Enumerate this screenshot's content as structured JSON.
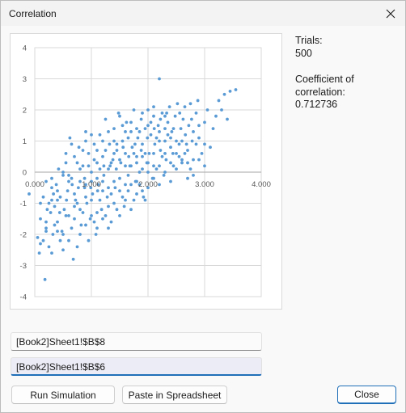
{
  "window": {
    "title": "Correlation"
  },
  "side": {
    "trials_label": "Trials:",
    "trials_value": "500",
    "coef_label_1": "Coefficient of",
    "coef_label_2": "correlation:",
    "coef_value": "0.712736"
  },
  "fields": {
    "range1": "[Book2]Sheet1!$B$8",
    "range2": "[Book2]Sheet1!$B$6"
  },
  "buttons": {
    "run": "Run Simulation",
    "paste": "Paste in Spreadsheet",
    "close": "Close"
  },
  "icons": {
    "close": "close-icon"
  },
  "colors": {
    "marker": "#5b9bd5",
    "focus": "#1f6fb8",
    "grid": "#d9d9d9"
  },
  "chart_data": {
    "type": "scatter",
    "title": "",
    "xlabel": "",
    "ylabel": "",
    "xlim": [
      0,
      4
    ],
    "ylim": [
      -4,
      4
    ],
    "x_ticks": [
      "0.000",
      "1.000",
      "2.000",
      "3.000",
      "4.000"
    ],
    "y_ticks": [
      "4",
      "3",
      "2",
      "1",
      "0",
      "-1",
      "-2",
      "-3",
      "-4"
    ],
    "grid": true,
    "legend": "none",
    "correlation": 0.712736,
    "n_points": 500,
    "series": [
      {
        "points": [
          [
            -0.1,
            -0.7
          ],
          [
            0.05,
            -2.1
          ],
          [
            0.08,
            -2.6
          ],
          [
            0.1,
            -1.5
          ],
          [
            0.15,
            -2.2
          ],
          [
            0.18,
            -3.45
          ],
          [
            0.2,
            -1.9
          ],
          [
            0.25,
            -2.4
          ],
          [
            0.28,
            -1.3
          ],
          [
            0.3,
            -0.9
          ],
          [
            0.32,
            -2.0
          ],
          [
            0.35,
            -1.1
          ],
          [
            0.38,
            -0.4
          ],
          [
            0.4,
            -1.6
          ],
          [
            0.42,
            0.1
          ],
          [
            0.45,
            -0.8
          ],
          [
            0.48,
            -1.9
          ],
          [
            0.5,
            0.0
          ],
          [
            0.52,
            -1.2
          ],
          [
            0.55,
            0.3
          ],
          [
            0.58,
            -0.6
          ],
          [
            0.6,
            -1.4
          ],
          [
            0.62,
            1.1
          ],
          [
            0.65,
            -0.2
          ],
          [
            0.68,
            -2.8
          ],
          [
            0.7,
            0.5
          ],
          [
            0.72,
            -0.9
          ],
          [
            0.75,
            -2.4
          ],
          [
            0.78,
            0.8
          ],
          [
            0.8,
            -0.3
          ],
          [
            0.82,
            -1.7
          ],
          [
            0.85,
            0.2
          ],
          [
            0.88,
            -0.5
          ],
          [
            0.9,
            1.3
          ],
          [
            0.92,
            -1.0
          ],
          [
            0.95,
            0.6
          ],
          [
            0.98,
            -1.5
          ],
          [
            1.0,
            0.0
          ],
          [
            1.02,
            -0.7
          ],
          [
            1.05,
            0.9
          ],
          [
            1.08,
            -2.0
          ],
          [
            1.1,
            0.3
          ],
          [
            1.12,
            -0.4
          ],
          [
            1.15,
            1.2
          ],
          [
            1.18,
            -1.2
          ],
          [
            1.2,
            0.5
          ],
          [
            1.22,
            -0.1
          ],
          [
            1.25,
            1.7
          ],
          [
            1.28,
            -0.8
          ],
          [
            1.3,
            0.1
          ],
          [
            1.32,
            0.9
          ],
          [
            1.35,
            -1.6
          ],
          [
            1.38,
            0.4
          ],
          [
            1.4,
            1.4
          ],
          [
            1.42,
            -0.5
          ],
          [
            1.45,
            0.7
          ],
          [
            1.48,
            1.9
          ],
          [
            1.5,
            -0.2
          ],
          [
            1.52,
            0.3
          ],
          [
            1.55,
            1.0
          ],
          [
            1.58,
            -1.1
          ],
          [
            1.6,
            0.6
          ],
          [
            1.62,
            1.6
          ],
          [
            1.65,
            -0.6
          ],
          [
            1.68,
            0.2
          ],
          [
            1.7,
            1.3
          ],
          [
            1.72,
            0.8
          ],
          [
            1.75,
            2.0
          ],
          [
            1.78,
            -0.3
          ],
          [
            1.8,
            0.5
          ],
          [
            1.82,
            1.1
          ],
          [
            1.85,
            0.0
          ],
          [
            1.88,
            1.7
          ],
          [
            1.9,
            0.9
          ],
          [
            1.92,
            -0.8
          ],
          [
            1.95,
            1.4
          ],
          [
            1.98,
            0.3
          ],
          [
            2.0,
            2.0
          ],
          [
            2.02,
            0.6
          ],
          [
            2.05,
            1.2
          ],
          [
            2.08,
            -0.2
          ],
          [
            2.1,
            1.8
          ],
          [
            2.12,
            0.9
          ],
          [
            2.15,
            0.1
          ],
          [
            2.18,
            1.5
          ],
          [
            2.2,
            3.0
          ],
          [
            2.22,
            0.7
          ],
          [
            2.25,
            1.9
          ],
          [
            2.28,
            -0.1
          ],
          [
            2.3,
            1.0
          ],
          [
            2.32,
            0.4
          ],
          [
            2.35,
            1.6
          ],
          [
            2.38,
            2.1
          ],
          [
            2.4,
            0.8
          ],
          [
            2.42,
            1.3
          ],
          [
            2.45,
            0.2
          ],
          [
            2.48,
            1.8
          ],
          [
            2.5,
            1.0
          ],
          [
            2.52,
            2.2
          ],
          [
            2.55,
            0.5
          ],
          [
            2.58,
            1.4
          ],
          [
            2.6,
            0.3
          ],
          [
            2.62,
            1.7
          ],
          [
            2.65,
            2.1
          ],
          [
            2.68,
            0.9
          ],
          [
            2.7,
            -0.2
          ],
          [
            2.72,
            1.5
          ],
          [
            2.75,
            2.2
          ],
          [
            2.78,
            1.0
          ],
          [
            2.8,
            0.4
          ],
          [
            2.85,
            1.9
          ],
          [
            2.88,
            2.3
          ],
          [
            2.9,
            1.1
          ],
          [
            2.95,
            0.6
          ],
          [
            3.0,
            1.6
          ],
          [
            3.05,
            2.0
          ],
          [
            3.1,
            0.8
          ],
          [
            3.15,
            1.4
          ],
          [
            3.2,
            1.8
          ],
          [
            3.25,
            2.3
          ],
          [
            3.3,
            2.0
          ],
          [
            3.35,
            2.5
          ],
          [
            3.4,
            1.7
          ],
          [
            3.45,
            2.6
          ],
          [
            3.55,
            2.65
          ],
          [
            0.2,
            -0.3
          ],
          [
            0.3,
            -0.5
          ],
          [
            0.4,
            -0.9
          ],
          [
            0.5,
            -0.1
          ],
          [
            0.6,
            -0.3
          ],
          [
            0.7,
            -0.7
          ],
          [
            0.8,
            -1.2
          ],
          [
            0.9,
            -0.4
          ],
          [
            1.0,
            -0.9
          ],
          [
            1.1,
            -0.2
          ],
          [
            1.2,
            -0.6
          ],
          [
            1.3,
            -1.1
          ],
          [
            1.4,
            -0.3
          ],
          [
            1.5,
            0.4
          ],
          [
            1.6,
            -0.4
          ],
          [
            1.7,
            0.2
          ],
          [
            1.8,
            -0.7
          ],
          [
            1.9,
            0.1
          ],
          [
            2.0,
            -0.5
          ],
          [
            2.1,
            0.2
          ],
          [
            2.2,
            -0.4
          ],
          [
            2.3,
            0.0
          ],
          [
            2.4,
            -0.3
          ],
          [
            0.25,
            -1.0
          ],
          [
            0.35,
            -1.7
          ],
          [
            0.45,
            -2.2
          ],
          [
            0.55,
            -1.4
          ],
          [
            0.65,
            -1.8
          ],
          [
            0.75,
            -1.0
          ],
          [
            0.85,
            -1.3
          ],
          [
            0.95,
            -2.2
          ],
          [
            1.05,
            -1.6
          ],
          [
            1.15,
            -0.9
          ],
          [
            1.25,
            -1.4
          ],
          [
            1.35,
            -0.7
          ],
          [
            1.45,
            -1.2
          ],
          [
            1.55,
            -0.8
          ],
          [
            1.65,
            -0.1
          ],
          [
            1.75,
            -0.9
          ],
          [
            1.85,
            -0.4
          ],
          [
            1.95,
            -0.9
          ],
          [
            0.55,
            0.6
          ],
          [
            0.65,
            0.9
          ],
          [
            0.75,
            0.3
          ],
          [
            0.85,
            0.7
          ],
          [
            0.95,
            0.2
          ],
          [
            1.05,
            0.4
          ],
          [
            1.15,
            0.1
          ],
          [
            1.25,
            0.7
          ],
          [
            1.35,
            0.3
          ],
          [
            1.45,
            0.9
          ],
          [
            1.55,
            1.5
          ],
          [
            1.65,
            1.1
          ],
          [
            1.75,
            0.6
          ],
          [
            1.85,
            1.3
          ],
          [
            1.95,
            0.6
          ],
          [
            2.05,
            1.6
          ],
          [
            2.15,
            1.1
          ],
          [
            2.25,
            0.5
          ],
          [
            2.35,
            1.2
          ],
          [
            2.45,
            1.4
          ],
          [
            2.55,
            0.9
          ],
          [
            2.65,
            0.6
          ],
          [
            2.75,
            0.1
          ],
          [
            2.85,
            0.9
          ],
          [
            0.1,
            -1.0
          ],
          [
            0.2,
            -1.6
          ],
          [
            0.3,
            -0.2
          ],
          [
            0.4,
            -0.6
          ],
          [
            0.5,
            -2.0
          ],
          [
            0.6,
            -0.1
          ],
          [
            0.7,
            -1.1
          ],
          [
            0.8,
            0.1
          ],
          [
            0.9,
            -0.8
          ],
          [
            1.0,
            -0.3
          ],
          [
            1.1,
            -1.3
          ],
          [
            1.2,
            -0.3
          ],
          [
            1.3,
            -0.5
          ],
          [
            1.4,
            0.6
          ],
          [
            1.5,
            -0.6
          ],
          [
            1.6,
            0.2
          ],
          [
            1.7,
            -0.4
          ],
          [
            1.8,
            0.3
          ],
          [
            1.9,
            0.5
          ],
          [
            2.0,
            0.3
          ],
          [
            2.1,
            0.6
          ],
          [
            2.2,
            1.0
          ],
          [
            2.3,
            1.4
          ],
          [
            2.4,
            1.1
          ],
          [
            2.5,
            0.6
          ],
          [
            2.6,
            1.0
          ],
          [
            2.7,
            0.7
          ],
          [
            2.8,
            1.3
          ],
          [
            2.9,
            1.5
          ],
          [
            3.0,
            0.9
          ],
          [
            0.15,
            -0.8
          ],
          [
            0.22,
            -1.2
          ],
          [
            0.33,
            -0.7
          ],
          [
            0.44,
            -1.3
          ],
          [
            0.56,
            -0.9
          ],
          [
            0.66,
            -0.4
          ],
          [
            0.77,
            -0.5
          ],
          [
            0.88,
            -0.2
          ],
          [
            0.99,
            -0.5
          ],
          [
            1.11,
            -0.6
          ],
          [
            1.22,
            0.2
          ],
          [
            1.33,
            0.2
          ],
          [
            1.44,
            0.1
          ],
          [
            1.56,
            0.8
          ],
          [
            1.66,
            0.5
          ],
          [
            1.77,
            0.9
          ],
          [
            1.88,
            0.7
          ],
          [
            1.99,
            1.1
          ],
          [
            2.11,
            1.4
          ],
          [
            2.22,
            1.7
          ],
          [
            2.33,
            1.9
          ],
          [
            2.44,
            0.6
          ],
          [
            2.56,
            1.9
          ],
          [
            2.66,
            1.2
          ],
          [
            2.77,
            1.7
          ],
          [
            0.9,
            1.0
          ],
          [
            1.0,
            1.2
          ],
          [
            1.1,
            0.7
          ],
          [
            1.2,
            1.0
          ],
          [
            1.3,
            1.3
          ],
          [
            1.4,
            1.0
          ],
          [
            1.5,
            1.8
          ],
          [
            1.6,
            1.3
          ],
          [
            1.7,
            1.6
          ],
          [
            1.8,
            1.4
          ],
          [
            1.9,
            1.9
          ],
          [
            2.0,
            1.5
          ],
          [
            2.1,
            2.1
          ],
          [
            2.2,
            1.3
          ],
          [
            2.3,
            1.8
          ],
          [
            0.1,
            -2.3
          ],
          [
            0.2,
            -1.8
          ],
          [
            0.3,
            -2.6
          ],
          [
            0.4,
            -1.9
          ],
          [
            0.5,
            -2.5
          ],
          [
            0.6,
            -2.2
          ],
          [
            0.7,
            -1.5
          ],
          [
            0.8,
            -2.0
          ],
          [
            0.9,
            -1.7
          ],
          [
            1.0,
            -1.4
          ],
          [
            1.1,
            -1.8
          ],
          [
            1.2,
            -1.5
          ],
          [
            1.3,
            -1.8
          ],
          [
            1.4,
            -1.0
          ],
          [
            1.5,
            -1.4
          ],
          [
            1.6,
            -0.9
          ],
          [
            1.7,
            -1.2
          ],
          [
            1.8,
            -0.3
          ],
          [
            1.9,
            -0.6
          ],
          [
            2.0,
            0.0
          ],
          [
            2.1,
            -0.2
          ],
          [
            2.2,
            0.2
          ],
          [
            2.3,
            0.6
          ],
          [
            2.4,
            0.3
          ],
          [
            2.5,
            0.1
          ],
          [
            2.6,
            0.4
          ],
          [
            2.7,
            0.3
          ],
          [
            2.8,
            -0.1
          ],
          [
            2.9,
            0.4
          ],
          [
            3.0,
            0.2
          ]
        ]
      }
    ]
  }
}
